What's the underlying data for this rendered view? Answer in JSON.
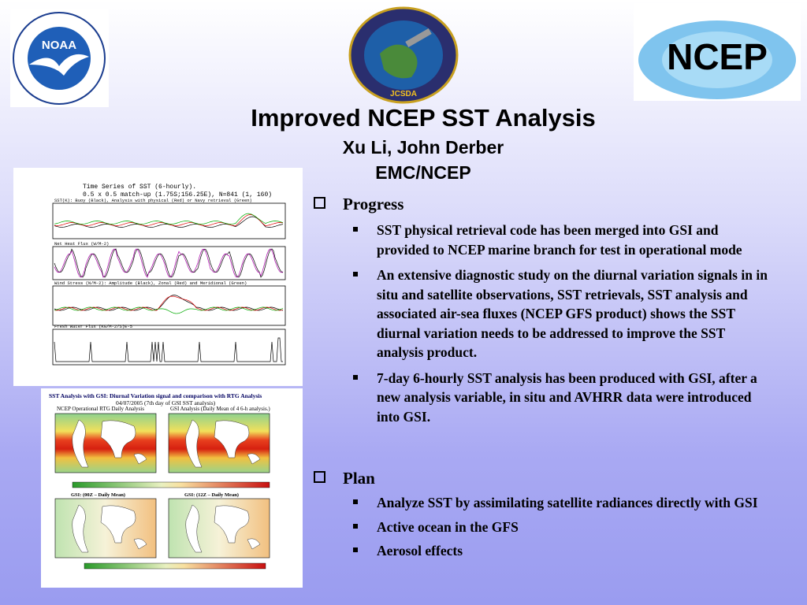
{
  "logos": {
    "left": "NOAA",
    "center": "JCSDA",
    "right": "NCEP"
  },
  "header": {
    "title": "Improved NCEP SST Analysis",
    "authors": "Xu Li, John Derber",
    "affiliation": "EMC/NCEP"
  },
  "figures": [
    {
      "title": "Time Series of SST (6-hourly).",
      "subtitle": "0.5 x 0.5 match-up (1.75S;156.25E), N=841 (1, 160)",
      "panels": [
        "SST(K): Buoy (Black), Analysis with physical (Red) or Navy retrieval (Green)",
        "Net Heat Flux (W/M-2)",
        "Wind Stress (N/M-2): Amplitude (Black), Zonal (Red) and Meridional (Green)",
        "Fresh Water Flux (KG/M-2/S)E-5"
      ]
    },
    {
      "title": "SST Analysis with GSI: Diurnal Variation signal and comparison with RTG Analysis",
      "subtitle": "04/07/2005 (7th day of GSI SST analysis)",
      "panels": [
        "NCEP Operational RTG Daily Analysis",
        "GSI Analysis (Daily Mean of 4 6-h analysis.)",
        "GSI: (00Z – Daily Mean)",
        "GSI: (12Z – Daily Mean)"
      ]
    }
  ],
  "sections": [
    {
      "heading": "Progress",
      "items": [
        "SST physical retrieval code has been merged into GSI and provided to NCEP marine branch for test in operational mode",
        "An extensive diagnostic study on the diurnal variation signals in in situ and satellite observations, SST retrievals, SST analysis and associated air-sea fluxes (NCEP GFS product) shows the SST diurnal variation needs to be addressed to improve the SST analysis product.",
        "7-day 6-hourly SST analysis has been produced with GSI, after a new analysis variable, in situ and AVHRR data were introduced into GSI."
      ]
    },
    {
      "heading": "Plan",
      "items": [
        "Analyze SST by assimilating satellite radiances directly with GSI",
        "Active ocean in the GFS",
        "Aerosol effects"
      ]
    }
  ]
}
